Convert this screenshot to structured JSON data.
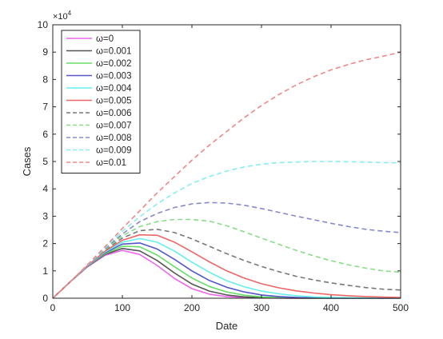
{
  "chart_data": {
    "type": "line",
    "title": "",
    "xlabel": "Date",
    "ylabel": "Cases",
    "y_exponent_label": "×10",
    "y_exponent_power": "4",
    "xlim": [
      0,
      500
    ],
    "ylim": [
      0,
      10
    ],
    "x_ticks": [
      0,
      100,
      200,
      300,
      400,
      500
    ],
    "x_tick_labels": [
      "0",
      "100",
      "200",
      "300",
      "400",
      "500"
    ],
    "y_ticks": [
      0,
      1,
      2,
      3,
      4,
      5,
      6,
      7,
      8,
      9,
      10
    ],
    "y_tick_labels": [
      "0",
      "1",
      "2",
      "3",
      "4",
      "5",
      "6",
      "7",
      "8",
      "9",
      "10"
    ],
    "grid": false,
    "legend_position": "top-left",
    "x": [
      0,
      25,
      50,
      75,
      100,
      125,
      150,
      175,
      200,
      225,
      250,
      275,
      300,
      325,
      350,
      375,
      400,
      425,
      450,
      475,
      500
    ],
    "series": [
      {
        "name": "ω=0",
        "color": "#ee66ee",
        "dash": "solid",
        "values": [
          0,
          0.6,
          1.15,
          1.57,
          1.75,
          1.6,
          1.2,
          0.72,
          0.35,
          0.15,
          0.06,
          0.02,
          0.01,
          0,
          0,
          0,
          0,
          0,
          0,
          0,
          0
        ]
      },
      {
        "name": "ω=0.001",
        "color": "#555555",
        "dash": "solid",
        "values": [
          0,
          0.6,
          1.16,
          1.6,
          1.82,
          1.73,
          1.38,
          0.92,
          0.52,
          0.26,
          0.12,
          0.05,
          0.02,
          0.01,
          0,
          0,
          0,
          0,
          0,
          0,
          0
        ]
      },
      {
        "name": "ω=0.002",
        "color": "#66dd66",
        "dash": "solid",
        "values": [
          0,
          0.6,
          1.17,
          1.63,
          1.9,
          1.88,
          1.58,
          1.15,
          0.74,
          0.43,
          0.23,
          0.11,
          0.05,
          0.02,
          0.01,
          0,
          0,
          0,
          0,
          0,
          0
        ]
      },
      {
        "name": "ω=0.003",
        "color": "#5555cc",
        "dash": "solid",
        "values": [
          0,
          0.6,
          1.17,
          1.66,
          1.98,
          2.02,
          1.8,
          1.42,
          1.0,
          0.65,
          0.4,
          0.23,
          0.12,
          0.06,
          0.03,
          0.01,
          0,
          0,
          0,
          0,
          0
        ]
      },
      {
        "name": "ω=0.004",
        "color": "#66eeee",
        "dash": "solid",
        "values": [
          0,
          0.6,
          1.18,
          1.69,
          2.05,
          2.18,
          2.05,
          1.72,
          1.32,
          0.95,
          0.64,
          0.42,
          0.26,
          0.16,
          0.09,
          0.05,
          0.03,
          0.02,
          0.01,
          0.01,
          0
        ]
      },
      {
        "name": "ω=0.005",
        "color": "#ee6666",
        "dash": "solid",
        "values": [
          0,
          0.6,
          1.19,
          1.72,
          2.12,
          2.32,
          2.3,
          2.05,
          1.7,
          1.33,
          1.0,
          0.74,
          0.53,
          0.38,
          0.27,
          0.19,
          0.13,
          0.09,
          0.06,
          0.04,
          0.03
        ]
      },
      {
        "name": "ω=0.006",
        "color": "#777777",
        "dash": "dashed",
        "values": [
          0,
          0.6,
          1.2,
          1.76,
          2.2,
          2.47,
          2.52,
          2.4,
          2.17,
          1.9,
          1.63,
          1.38,
          1.16,
          0.97,
          0.8,
          0.67,
          0.56,
          0.47,
          0.39,
          0.33,
          0.3
        ]
      },
      {
        "name": "ω=0.007",
        "color": "#88dd88",
        "dash": "dashed",
        "values": [
          0,
          0.6,
          1.2,
          1.78,
          2.28,
          2.62,
          2.8,
          2.88,
          2.88,
          2.82,
          2.65,
          2.43,
          2.2,
          1.97,
          1.75,
          1.55,
          1.37,
          1.22,
          1.1,
          1.0,
          0.95
        ]
      },
      {
        "name": "ω=0.008",
        "color": "#8888cc",
        "dash": "dashed",
        "values": [
          0,
          0.6,
          1.21,
          1.81,
          2.35,
          2.8,
          3.1,
          3.32,
          3.45,
          3.5,
          3.48,
          3.4,
          3.28,
          3.14,
          3.0,
          2.87,
          2.74,
          2.62,
          2.52,
          2.45,
          2.4
        ]
      },
      {
        "name": "ω=0.009",
        "color": "#88eeee",
        "dash": "dashed",
        "values": [
          0,
          0.6,
          1.22,
          1.84,
          2.45,
          2.98,
          3.45,
          3.85,
          4.2,
          4.45,
          4.65,
          4.8,
          4.9,
          4.96,
          4.98,
          5.0,
          5.0,
          4.99,
          4.98,
          4.96,
          4.95
        ]
      },
      {
        "name": "ω=0.01",
        "color": "#ee8888",
        "dash": "dashed",
        "values": [
          0,
          0.6,
          1.23,
          1.88,
          2.55,
          3.2,
          3.85,
          4.45,
          5.05,
          5.6,
          6.1,
          6.6,
          7.05,
          7.45,
          7.8,
          8.1,
          8.35,
          8.55,
          8.72,
          8.85,
          9.0
        ]
      }
    ]
  }
}
